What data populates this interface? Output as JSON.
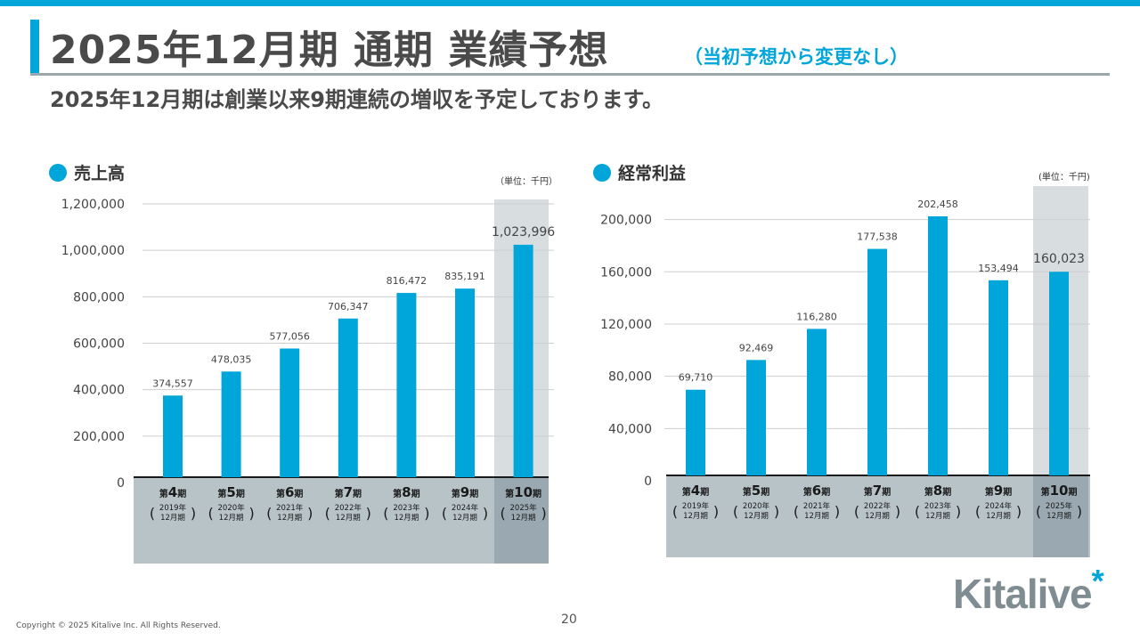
{
  "header": {
    "title": "2025年12月期 通期 業績予想",
    "title_note": "（当初予想から変更なし）",
    "subtitle": "2025年12月期は創業以来9期連続の増収を予定しております。"
  },
  "colors": {
    "accent": "#00a6d9",
    "forecast_bg": "#d8dde0",
    "axis_band": "#b8c3c8",
    "axis_band_dark": "#9aa9b1"
  },
  "chart_data": [
    {
      "type": "bar",
      "title": "売上高",
      "unit": "（単位：千円）",
      "categories": [
        {
          "period": "第4期",
          "num": "第",
          "n": "4",
          "suffix": "期",
          "year": "2019年",
          "month": "12月期"
        },
        {
          "period": "第5期",
          "num": "第",
          "n": "5",
          "suffix": "期",
          "year": "2020年",
          "month": "12月期"
        },
        {
          "period": "第6期",
          "num": "第",
          "n": "6",
          "suffix": "期",
          "year": "2021年",
          "month": "12月期"
        },
        {
          "period": "第7期",
          "num": "第",
          "n": "7",
          "suffix": "期",
          "year": "2022年",
          "month": "12月期"
        },
        {
          "period": "第8期",
          "num": "第",
          "n": "8",
          "suffix": "期",
          "year": "2023年",
          "month": "12月期"
        },
        {
          "period": "第9期",
          "num": "第",
          "n": "9",
          "suffix": "期",
          "year": "2024年",
          "month": "12月期"
        },
        {
          "period": "第10期",
          "num": "第",
          "n": "10",
          "suffix": "期",
          "year": "2025年",
          "month": "12月期"
        }
      ],
      "values": [
        374557,
        478035,
        577056,
        706347,
        816472,
        835191,
        1023996
      ],
      "value_labels": [
        "374,557",
        "478,035",
        "577,056",
        "706,347",
        "816,472",
        "835,191",
        "1,023,996"
      ],
      "forecast_index": 6,
      "ylim": [
        0,
        1200000
      ],
      "yticks": [
        0,
        200000,
        400000,
        600000,
        800000,
        1000000,
        1200000
      ],
      "ytick_labels": [
        "0",
        "200,000",
        "400,000",
        "600,000",
        "800,000",
        "1,000,000",
        "1,200,000"
      ],
      "grid": true
    },
    {
      "type": "bar",
      "title": "経常利益",
      "unit": "(単位：千円)",
      "categories": [
        {
          "period": "第4期",
          "num": "第",
          "n": "4",
          "suffix": "期",
          "year": "2019年",
          "month": "12月期"
        },
        {
          "period": "第5期",
          "num": "第",
          "n": "5",
          "suffix": "期",
          "year": "2020年",
          "month": "12月期"
        },
        {
          "period": "第6期",
          "num": "第",
          "n": "6",
          "suffix": "期",
          "year": "2021年",
          "month": "12月期"
        },
        {
          "period": "第7期",
          "num": "第",
          "n": "7",
          "suffix": "期",
          "year": "2022年",
          "month": "12月期"
        },
        {
          "period": "第8期",
          "num": "第",
          "n": "8",
          "suffix": "期",
          "year": "2023年",
          "month": "12月期"
        },
        {
          "period": "第9期",
          "num": "第",
          "n": "9",
          "suffix": "期",
          "year": "2024年",
          "month": "12月期"
        },
        {
          "period": "第10期",
          "num": "第",
          "n": "10",
          "suffix": "期",
          "year": "2025年",
          "month": "12月期"
        }
      ],
      "values": [
        69710,
        92469,
        116280,
        177538,
        202458,
        153494,
        160023
      ],
      "value_labels": [
        "69,710",
        "92,469",
        "116,280",
        "177,538",
        "202,458",
        "153,494",
        "160,023"
      ],
      "forecast_index": 6,
      "ylim": [
        0,
        212000
      ],
      "yticks": [
        0,
        40000,
        80000,
        120000,
        160000,
        200000
      ],
      "ytick_labels": [
        "0",
        "40,000",
        "80,000",
        "120,000",
        "160,000",
        "200,000"
      ],
      "grid": true
    }
  ],
  "footer": {
    "copyright": "Copyright © 2025 Kitalive Inc. All Rights Reserved.",
    "page_number": "20",
    "logo_text": "Kitalive",
    "logo_mark": "*"
  }
}
